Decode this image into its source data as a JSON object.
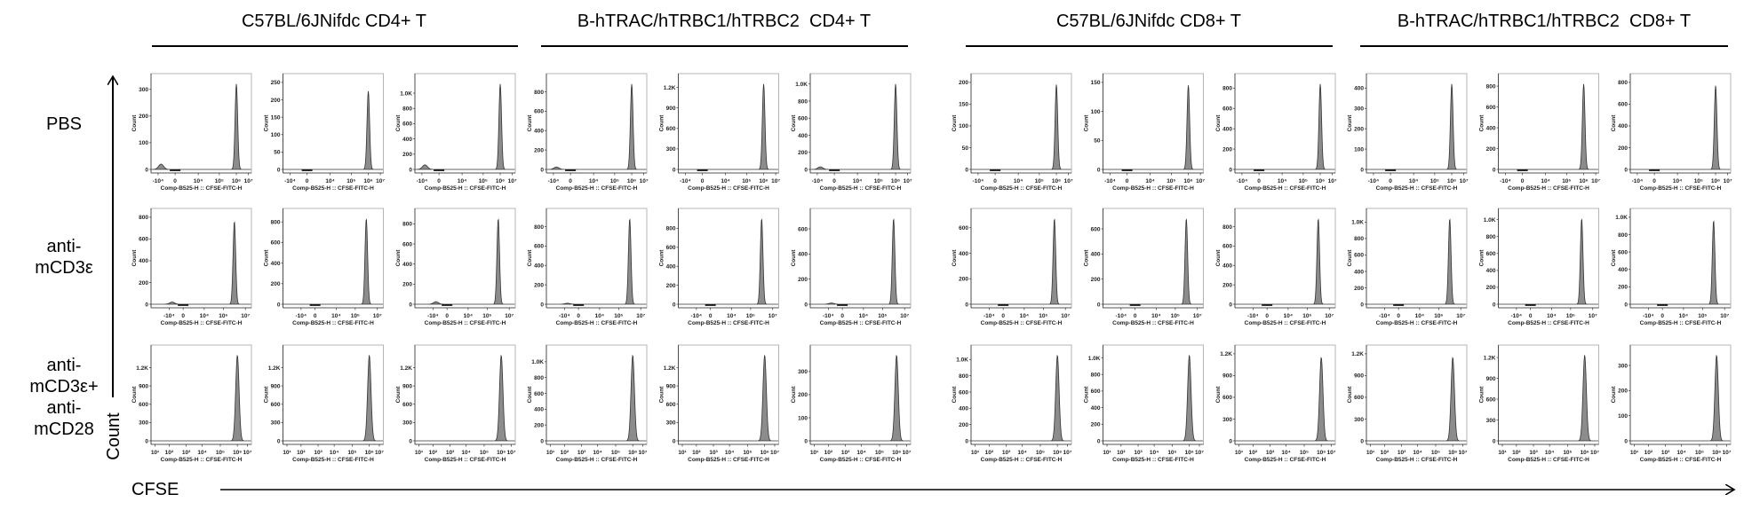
{
  "chart_data": {
    "type": "histogram-grid",
    "column_groups": [
      "C57BL/6JNifdc CD4+ T",
      "B-hTRAC/hTRBC1/hTRBC2  CD4+ T",
      "C57BL/6JNifdc CD8+ T",
      "B-hTRAC/hTRBC1/hTRBC2  CD8+ T"
    ],
    "row_labels": [
      [
        "PBS"
      ],
      [
        "anti-",
        "mCD3ε"
      ],
      [
        "anti-",
        "mCD3ε+",
        "anti-",
        "mCD28"
      ]
    ],
    "ylabel": "Count",
    "xlabel": "CFSE",
    "panel_ylabel": "Count",
    "panel_xlabel": "Comp-B525-H :: CFSE-FITC-H",
    "fill_color": "#8c8c8c",
    "x_axes": {
      "row1": {
        "labels": [
          "-10⁴",
          "0",
          "10⁴",
          "10⁵",
          "10⁶",
          "10⁷"
        ],
        "values": [
          -10000,
          0,
          10000,
          100000,
          1000000,
          10000000
        ]
      },
      "row2": {
        "labels": [
          "-10⁴",
          "0",
          "10⁴",
          "10⁵",
          "10⁷"
        ],
        "values": [
          -10000,
          0,
          10000,
          100000,
          10000000
        ]
      },
      "row3": {
        "labels": [
          "10¹",
          "10²",
          "10³",
          "10⁴",
          "10⁵",
          "10⁶",
          "10⁷"
        ],
        "values": [
          10,
          100,
          1000,
          10000,
          100000,
          1000000,
          10000000
        ]
      }
    },
    "panels": [
      [
        [
          {
            "yticks": [
              "0",
              "100",
              "200",
              "300"
            ],
            "ytv": [
              0,
              100,
              200,
              300
            ],
            "peak": 320,
            "peak_x": 1000000,
            "minor": 20
          },
          {
            "yticks": [
              "0",
              "50",
              "100",
              "150",
              "200",
              "250"
            ],
            "ytv": [
              0,
              50,
              100,
              150,
              200,
              250
            ],
            "peak": 225,
            "peak_x": 1000000,
            "minor": 0
          },
          {
            "yticks": [
              "0",
              "200",
              "400",
              "600",
              "800",
              "1.0K"
            ],
            "ytv": [
              0,
              200,
              400,
              600,
              800,
              1000
            ],
            "peak": 1120,
            "peak_x": 1000000,
            "minor": 60
          }
        ],
        [
          {
            "yticks": [
              "0",
              "200",
              "400",
              "600",
              "800"
            ],
            "ytv": [
              0,
              200,
              400,
              600,
              800
            ],
            "peak": 880,
            "peak_x": 1000000,
            "minor": 25
          },
          {
            "yticks": [
              "0",
              "300",
              "600",
              "900",
              "1.2K"
            ],
            "ytv": [
              0,
              300,
              600,
              900,
              1200
            ],
            "peak": 1250,
            "peak_x": 1000000,
            "minor": 0
          },
          {
            "yticks": [
              "0",
              "200",
              "400",
              "600",
              "800",
              "1.0K"
            ],
            "ytv": [
              0,
              200,
              400,
              600,
              800,
              1000
            ],
            "peak": 1000,
            "peak_x": 1000000,
            "minor": 30
          }
        ],
        [
          {
            "yticks": [
              "0",
              "50",
              "100",
              "150",
              "200"
            ],
            "ytv": [
              0,
              50,
              100,
              150,
              200
            ],
            "peak": 195,
            "peak_x": 1000000,
            "minor": 0
          },
          {
            "yticks": [
              "0",
              "50",
              "100",
              "150"
            ],
            "ytv": [
              0,
              50,
              100,
              150
            ],
            "peak": 145,
            "peak_x": 1000000,
            "minor": 0
          },
          {
            "yticks": [
              "0",
              "200",
              "400",
              "600",
              "800"
            ],
            "ytv": [
              0,
              200,
              400,
              600,
              800
            ],
            "peak": 840,
            "peak_x": 1000000,
            "minor": 0
          }
        ],
        [
          {
            "yticks": [
              "0",
              "100",
              "200",
              "300",
              "400"
            ],
            "ytv": [
              0,
              100,
              200,
              300,
              400
            ],
            "peak": 420,
            "peak_x": 1000000,
            "minor": 0
          },
          {
            "yticks": [
              "0",
              "200",
              "400",
              "600",
              "800"
            ],
            "ytv": [
              0,
              200,
              400,
              600,
              800
            ],
            "peak": 820,
            "peak_x": 1000000,
            "minor": 0
          },
          {
            "yticks": [
              "0",
              "200",
              "400",
              "600",
              "800"
            ],
            "ytv": [
              0,
              200,
              400,
              600,
              800
            ],
            "peak": 770,
            "peak_x": 1000000,
            "minor": 0
          }
        ]
      ],
      [
        [
          {
            "yticks": [
              "0",
              "200",
              "400",
              "600",
              "800"
            ],
            "ytv": [
              0,
              200,
              400,
              600,
              800
            ],
            "peak": 760,
            "peak_x": 1000000,
            "minor": 20
          },
          {
            "yticks": [
              "0",
              "200",
              "400",
              "600",
              "800"
            ],
            "ytv": [
              0,
              200,
              400,
              600,
              800
            ],
            "peak": 830,
            "peak_x": 1000000,
            "minor": 0
          },
          {
            "yticks": [
              "0",
              "200",
              "400",
              "600",
              "800"
            ],
            "ytv": [
              0,
              200,
              400,
              600,
              800
            ],
            "peak": 850,
            "peak_x": 1000000,
            "minor": 25
          }
        ],
        [
          {
            "yticks": [
              "0",
              "200",
              "400",
              "600",
              "800"
            ],
            "ytv": [
              0,
              200,
              400,
              600,
              800
            ],
            "peak": 880,
            "peak_x": 1000000,
            "minor": 10
          },
          {
            "yticks": [
              "0",
              "200",
              "400",
              "600",
              "800"
            ],
            "ytv": [
              0,
              200,
              400,
              600,
              800
            ],
            "peak": 900,
            "peak_x": 1000000,
            "minor": 0
          },
          {
            "yticks": [
              "0",
              "200",
              "400",
              "600"
            ],
            "ytv": [
              0,
              200,
              400,
              600
            ],
            "peak": 680,
            "peak_x": 1000000,
            "minor": 10
          }
        ],
        [
          {
            "yticks": [
              "0",
              "200",
              "400",
              "600"
            ],
            "ytv": [
              0,
              200,
              400,
              600
            ],
            "peak": 670,
            "peak_x": 1000000,
            "minor": 0
          },
          {
            "yticks": [
              "0",
              "200",
              "400",
              "600"
            ],
            "ytv": [
              0,
              200,
              400,
              600
            ],
            "peak": 680,
            "peak_x": 1000000,
            "minor": 0
          },
          {
            "yticks": [
              "0",
              "200",
              "400",
              "600",
              "800"
            ],
            "ytv": [
              0,
              200,
              400,
              600,
              800
            ],
            "peak": 880,
            "peak_x": 1000000,
            "minor": 0
          }
        ],
        [
          {
            "yticks": [
              "0",
              "200",
              "400",
              "600",
              "800",
              "1.0K"
            ],
            "ytv": [
              0,
              200,
              400,
              600,
              800,
              1000
            ],
            "peak": 1040,
            "peak_x": 1000000,
            "minor": 0
          },
          {
            "yticks": [
              "0",
              "200",
              "400",
              "600",
              "800",
              "1.0K"
            ],
            "ytv": [
              0,
              200,
              400,
              600,
              800,
              1000
            ],
            "peak": 1010,
            "peak_x": 1000000,
            "minor": 0
          },
          {
            "yticks": [
              "0",
              "200",
              "400",
              "600",
              "800",
              "1.0K"
            ],
            "ytv": [
              0,
              200,
              400,
              600,
              800,
              1000
            ],
            "peak": 960,
            "peak_x": 1000000,
            "minor": 0
          }
        ]
      ],
      [
        [
          {
            "yticks": [
              "0",
              "300",
              "600",
              "900",
              "1.2K"
            ],
            "ytv": [
              0,
              300,
              600,
              900,
              1200
            ],
            "peak": 1400,
            "peak_x": 1000000,
            "minor": 0
          },
          {
            "yticks": [
              "0",
              "300",
              "600",
              "900",
              "1.2K"
            ],
            "ytv": [
              0,
              300,
              600,
              900,
              1200
            ],
            "peak": 1400,
            "peak_x": 1000000,
            "minor": 0
          },
          {
            "yticks": [
              "0",
              "300",
              "600",
              "900",
              "1.2K"
            ],
            "ytv": [
              0,
              300,
              600,
              900,
              1200
            ],
            "peak": 1400,
            "peak_x": 1000000,
            "minor": 0
          }
        ],
        [
          {
            "yticks": [
              "0",
              "200",
              "400",
              "600",
              "800",
              "1.0K"
            ],
            "ytv": [
              0,
              200,
              400,
              600,
              800,
              1000
            ],
            "peak": 1080,
            "peak_x": 1000000,
            "minor": 0
          },
          {
            "yticks": [
              "0",
              "300",
              "600",
              "900",
              "1.2K"
            ],
            "ytv": [
              0,
              300,
              600,
              900,
              1200
            ],
            "peak": 1400,
            "peak_x": 1000000,
            "minor": 0
          },
          {
            "yticks": [
              "0",
              "100",
              "200",
              "300"
            ],
            "ytv": [
              0,
              100,
              200,
              300
            ],
            "peak": 370,
            "peak_x": 1000000,
            "minor": 0
          }
        ],
        [
          {
            "yticks": [
              "0",
              "200",
              "400",
              "600",
              "800",
              "1.0K"
            ],
            "ytv": [
              0,
              200,
              400,
              600,
              800,
              1000
            ],
            "peak": 1050,
            "peak_x": 1000000,
            "minor": 0
          },
          {
            "yticks": [
              "0",
              "200",
              "400",
              "600",
              "800",
              "1.0K"
            ],
            "ytv": [
              0,
              200,
              400,
              600,
              800,
              1000
            ],
            "peak": 1030,
            "peak_x": 1000000,
            "minor": 0
          },
          {
            "yticks": [
              "0",
              "300",
              "600",
              "900",
              "1.2K"
            ],
            "ytv": [
              0,
              300,
              600,
              900,
              1200
            ],
            "peak": 1150,
            "peak_x": 1000000,
            "minor": 0
          }
        ],
        [
          {
            "yticks": [
              "0",
              "300",
              "600",
              "900",
              "1.2K"
            ],
            "ytv": [
              0,
              300,
              600,
              900,
              1200
            ],
            "peak": 1150,
            "peak_x": 1000000,
            "minor": 0
          },
          {
            "yticks": [
              "0",
              "300",
              "600",
              "900",
              "1.2K"
            ],
            "ytv": [
              0,
              300,
              600,
              900,
              1200
            ],
            "peak": 1230,
            "peak_x": 1000000,
            "minor": 0
          },
          {
            "yticks": [
              "0",
              "100",
              "200",
              "300"
            ],
            "ytv": [
              0,
              100,
              200,
              300
            ],
            "peak": 340,
            "peak_x": 1000000,
            "minor": 0
          }
        ]
      ]
    ]
  }
}
